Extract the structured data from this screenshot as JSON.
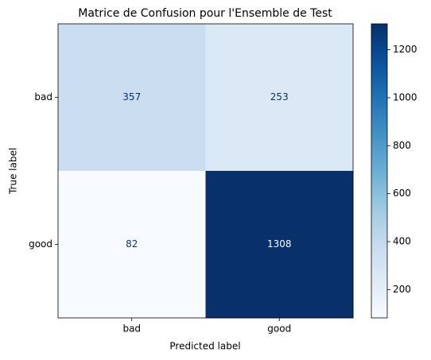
{
  "chart_data": {
    "type": "heatmap",
    "title": "Matrice de Confusion pour l'Ensemble de Test",
    "x_label": "Predicted label",
    "y_label": "True label",
    "x_categories": [
      "bad",
      "good"
    ],
    "y_categories": [
      "bad",
      "good"
    ],
    "values": [
      [
        357,
        253
      ],
      [
        82,
        1308
      ]
    ],
    "colormap": "Blues",
    "clim": [
      82,
      1308
    ],
    "colorbar_ticks": [
      200,
      400,
      600,
      800,
      1000,
      1200
    ]
  }
}
